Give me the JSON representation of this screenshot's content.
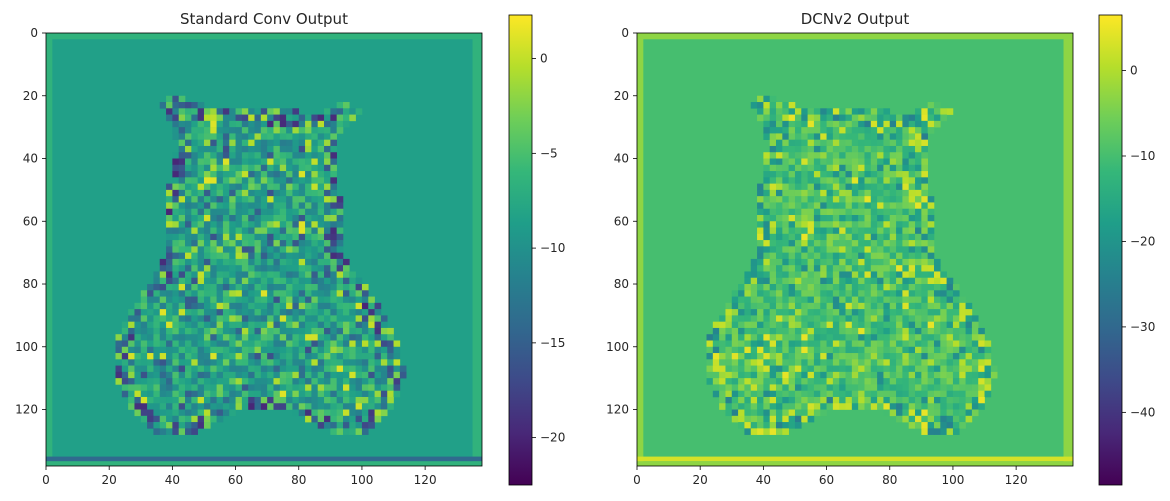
{
  "chart_data": [
    {
      "type": "heatmap",
      "title": "Standard Conv Output",
      "colormap": "viridis",
      "xlim": [
        0,
        138
      ],
      "ylim": [
        138,
        0
      ],
      "xticks": [
        0,
        20,
        40,
        60,
        80,
        100,
        120
      ],
      "yticks": [
        0,
        20,
        40,
        60,
        80,
        100,
        120
      ],
      "colorbar": {
        "min": -22.5,
        "max": 2.3,
        "ticks": [
          0,
          -5,
          -10,
          -15,
          -20
        ],
        "tick_labels": [
          "0",
          "−5",
          "−10",
          "−15",
          "−20"
        ]
      },
      "background_value": -8.5,
      "border_value": -6.5,
      "bottom_band_value": -14.0,
      "edge_response_range": [
        -20,
        0
      ]
    },
    {
      "type": "heatmap",
      "title": "DCNv2 Output",
      "colormap": "viridis",
      "xlim": [
        0,
        138
      ],
      "ylim": [
        138,
        0
      ],
      "xticks": [
        0,
        20,
        40,
        60,
        80,
        100,
        120
      ],
      "yticks": [
        0,
        20,
        40,
        60,
        80,
        100,
        120
      ],
      "colorbar": {
        "min": -48.5,
        "max": 6.5,
        "ticks": [
          0,
          -10,
          -20,
          -30,
          -40
        ],
        "tick_labels": [
          "0",
          "−10",
          "−20",
          "−30",
          "−40"
        ]
      },
      "background_value": -10.0,
      "border_value": -3.0,
      "bottom_band_value": 3.0,
      "edge_response_range": [
        -25,
        5
      ]
    }
  ]
}
